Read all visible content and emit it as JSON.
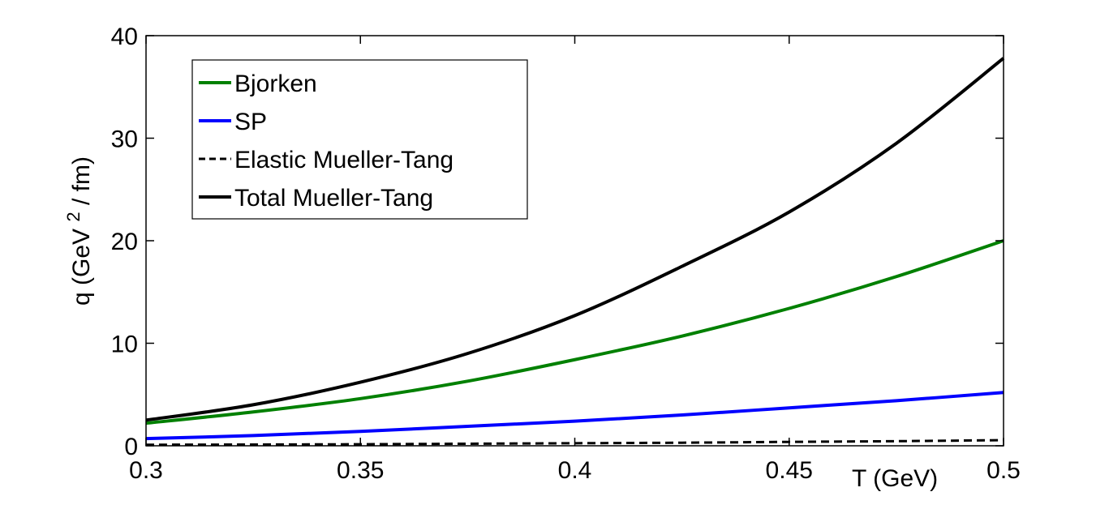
{
  "chart_data": {
    "type": "line",
    "xlabel": "T (GeV)",
    "ylabel": {
      "prefix": "q (GeV",
      "superscript": "2",
      "suffix": " / fm)"
    },
    "xlim": [
      0.3,
      0.5
    ],
    "ylim": [
      0,
      40
    ],
    "x_ticks": [
      0.3,
      0.35,
      0.4,
      0.45,
      0.5
    ],
    "x_tick_labels": [
      "0.3",
      "0.35",
      "0.4",
      "0.45",
      "0.5"
    ],
    "y_ticks": [
      0,
      10,
      20,
      30,
      40
    ],
    "y_tick_labels": [
      "0",
      "10",
      "20",
      "30",
      "40"
    ],
    "grid": false,
    "legend_position": "top-left",
    "x": [
      0.3,
      0.325,
      0.35,
      0.375,
      0.4,
      0.425,
      0.45,
      0.475,
      0.5
    ],
    "series": [
      {
        "name": "Bjorken",
        "color": "#008000",
        "dash": "solid",
        "values": [
          2.2,
          3.3,
          4.6,
          6.3,
          8.4,
          10.7,
          13.4,
          16.5,
          20.0
        ]
      },
      {
        "name": "SP",
        "color": "#0000ff",
        "dash": "solid",
        "values": [
          0.7,
          1.0,
          1.4,
          1.9,
          2.4,
          3.0,
          3.7,
          4.4,
          5.2
        ]
      },
      {
        "name": "Elastic Mueller-Tang",
        "color": "#000000",
        "dash": "dashed",
        "values": [
          0.1,
          0.12,
          0.15,
          0.2,
          0.25,
          0.3,
          0.38,
          0.45,
          0.55
        ]
      },
      {
        "name": "Total Mueller-Tang",
        "color": "#000000",
        "dash": "solid",
        "values": [
          2.5,
          4.0,
          6.2,
          9.0,
          12.7,
          17.5,
          22.8,
          29.5,
          37.8
        ]
      }
    ]
  }
}
